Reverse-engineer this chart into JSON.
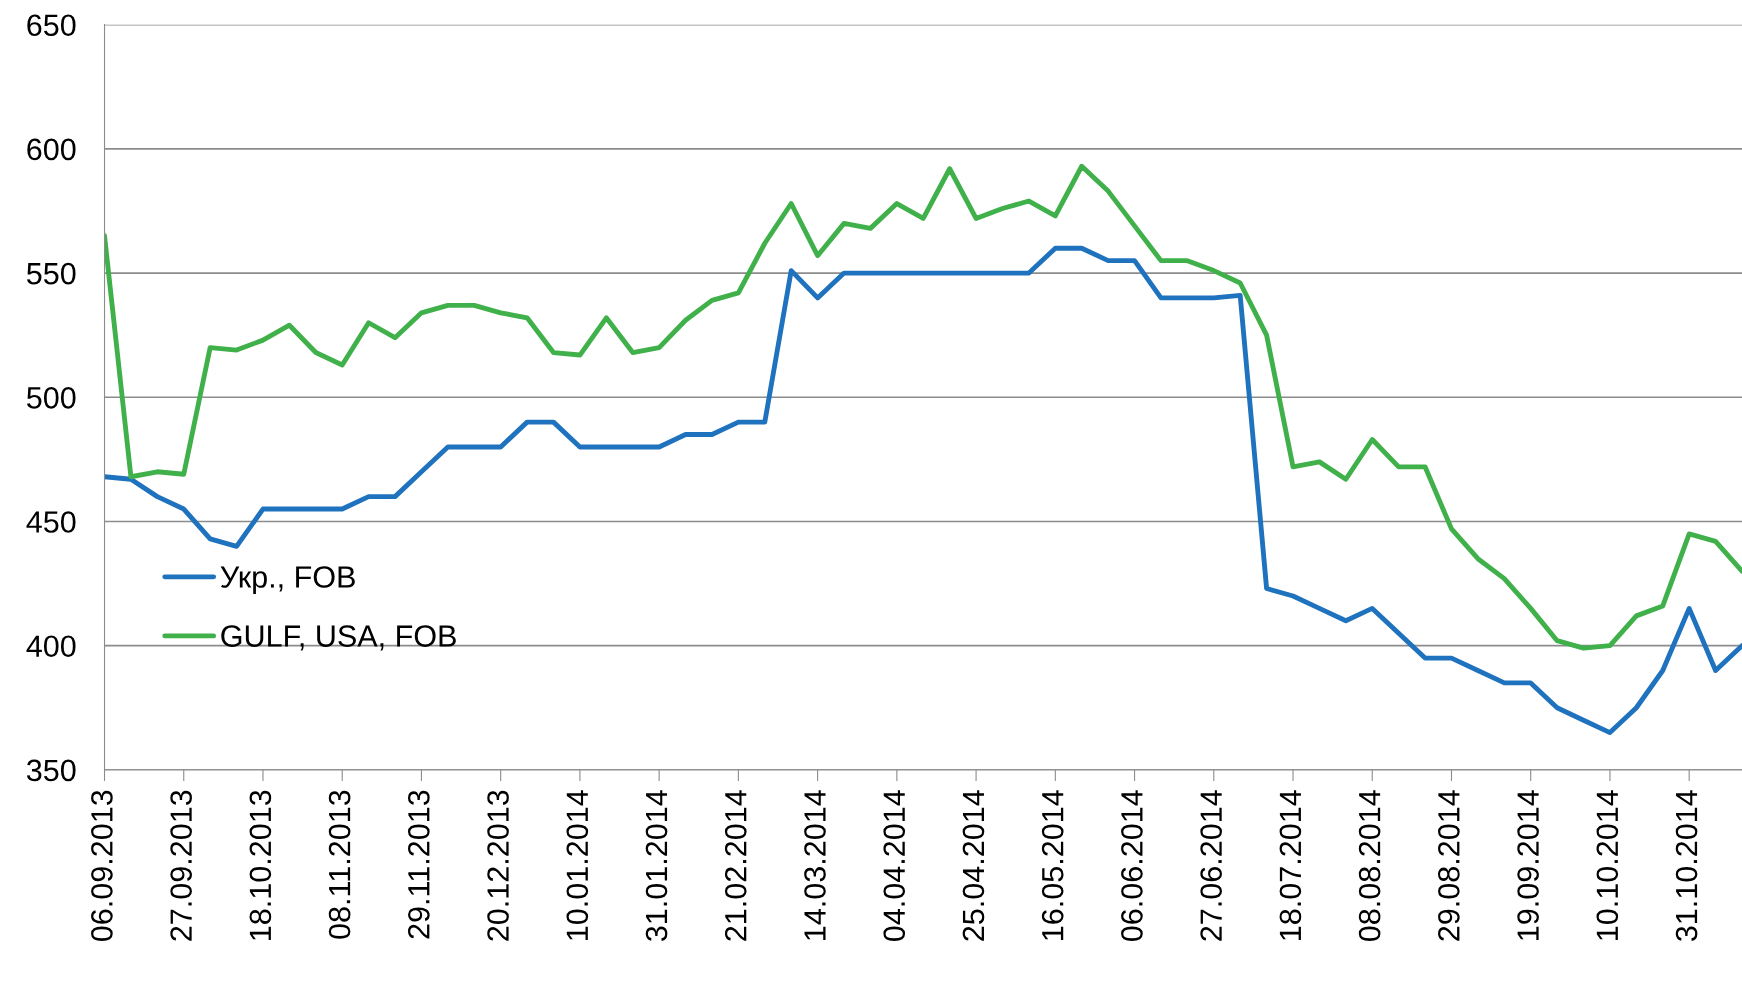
{
  "chart_data": {
    "type": "line",
    "x": [
      "2013-09-06",
      "2013-09-13",
      "2013-09-20",
      "2013-09-27",
      "2013-10-04",
      "2013-10-11",
      "2013-10-18",
      "2013-10-25",
      "2013-11-01",
      "2013-11-08",
      "2013-11-15",
      "2013-11-22",
      "2013-11-29",
      "2013-12-06",
      "2013-12-13",
      "2013-12-20",
      "2013-12-27",
      "2014-01-03",
      "2014-01-10",
      "2014-01-17",
      "2014-01-24",
      "2014-01-31",
      "2014-02-07",
      "2014-02-14",
      "2014-02-21",
      "2014-02-28",
      "2014-03-07",
      "2014-03-14",
      "2014-03-21",
      "2014-03-28",
      "2014-04-04",
      "2014-04-11",
      "2014-04-18",
      "2014-04-25",
      "2014-05-02",
      "2014-05-09",
      "2014-05-16",
      "2014-05-23",
      "2014-05-30",
      "2014-06-06",
      "2014-06-13",
      "2014-06-20",
      "2014-06-27",
      "2014-07-04",
      "2014-07-11",
      "2014-07-18",
      "2014-07-25",
      "2014-08-01",
      "2014-08-08",
      "2014-08-15",
      "2014-08-22",
      "2014-08-29",
      "2014-09-05",
      "2014-09-12",
      "2014-09-19",
      "2014-09-26",
      "2014-10-03",
      "2014-10-10",
      "2014-10-17",
      "2014-10-24",
      "2014-10-31",
      "2014-11-07",
      "2014-11-14"
    ],
    "series": [
      {
        "name": "Укр., FOB",
        "color": "#1f72bd",
        "values": [
          468,
          467,
          460,
          455,
          443,
          440,
          455,
          455,
          455,
          455,
          460,
          460,
          470,
          480,
          480,
          480,
          490,
          490,
          480,
          480,
          480,
          480,
          485,
          485,
          490,
          490,
          551,
          540,
          550,
          550,
          550,
          550,
          550,
          550,
          550,
          550,
          560,
          560,
          555,
          555,
          540,
          540,
          540,
          541,
          423,
          420,
          415,
          410,
          415,
          405,
          395,
          395,
          390,
          385,
          385,
          375,
          370,
          365,
          375,
          390,
          415,
          390,
          400
        ]
      },
      {
        "name": "GULF, USA, FOB",
        "color": "#40b04a",
        "values": [
          565,
          468,
          470,
          469,
          520,
          519,
          523,
          529,
          518,
          513,
          530,
          524,
          534,
          537,
          537,
          534,
          532,
          518,
          517,
          532,
          518,
          520,
          531,
          539,
          542,
          562,
          578,
          557,
          570,
          568,
          578,
          572,
          592,
          572,
          576,
          579,
          573,
          593,
          583,
          569,
          555,
          555,
          551,
          546,
          525,
          472,
          474,
          467,
          483,
          472,
          472,
          447,
          435,
          427,
          415,
          402,
          399,
          400,
          412,
          416,
          445,
          442,
          430
        ]
      }
    ],
    "xlim": [
      "2013-09-06",
      "2014-11-14"
    ],
    "xticks": [
      {
        "value": "2013-09-06",
        "label": "06.09.2013"
      },
      {
        "value": "2013-09-27",
        "label": "27.09.2013"
      },
      {
        "value": "2013-10-18",
        "label": "18.10.2013"
      },
      {
        "value": "2013-11-08",
        "label": "08.11.2013"
      },
      {
        "value": "2013-11-29",
        "label": "29.11.2013"
      },
      {
        "value": "2013-12-20",
        "label": "20.12.2013"
      },
      {
        "value": "2014-01-10",
        "label": "10.01.2014"
      },
      {
        "value": "2014-01-31",
        "label": "31.01.2014"
      },
      {
        "value": "2014-02-21",
        "label": "21.02.2014"
      },
      {
        "value": "2014-03-14",
        "label": "14.03.2014"
      },
      {
        "value": "2014-04-04",
        "label": "04.04.2014"
      },
      {
        "value": "2014-04-25",
        "label": "25.04.2014"
      },
      {
        "value": "2014-05-16",
        "label": "16.05.2014"
      },
      {
        "value": "2014-06-06",
        "label": "06.06.2014"
      },
      {
        "value": "2014-06-27",
        "label": "27.06.2014"
      },
      {
        "value": "2014-07-18",
        "label": "18.07.2014"
      },
      {
        "value": "2014-08-08",
        "label": "08.08.2014"
      },
      {
        "value": "2014-08-29",
        "label": "29.08.2014"
      },
      {
        "value": "2014-09-19",
        "label": "19.09.2014"
      },
      {
        "value": "2014-10-10",
        "label": "10.10.2014"
      },
      {
        "value": "2014-10-31",
        "label": "31.10.2014"
      }
    ],
    "ylim": [
      350,
      650
    ],
    "yticks": [
      350,
      400,
      450,
      500,
      550,
      600,
      650
    ],
    "grid": "y",
    "legend": "bottom left",
    "marker": "none",
    "line_style": "solid"
  }
}
